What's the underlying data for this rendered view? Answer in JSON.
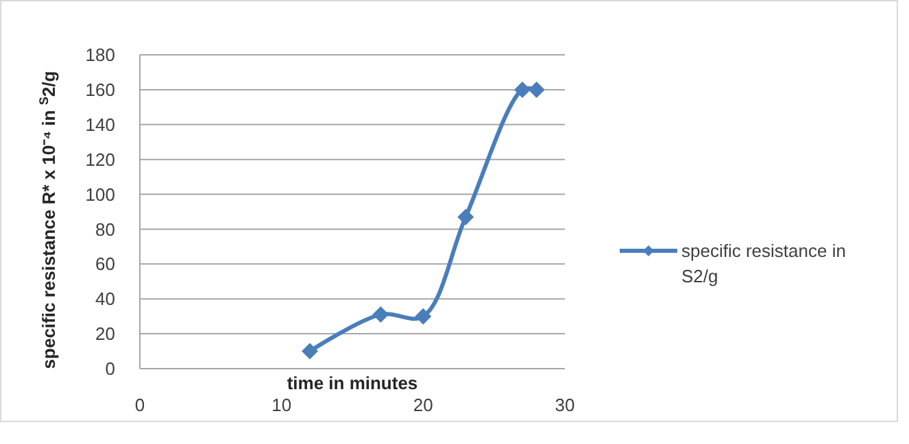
{
  "chart_data": {
    "type": "line",
    "xlabel": "time in minutes",
    "ylabel": "specific resistance R* x 10⁻⁴ in $^{S}$2/g",
    "x": [
      12,
      17,
      20,
      23,
      27,
      28
    ],
    "series": [
      {
        "name": "specific resistance in S2/g",
        "color": "#4a7ebb",
        "values": [
          10,
          31,
          30,
          87,
          160,
          160
        ]
      }
    ],
    "xlim": [
      0,
      30
    ],
    "xticks": [
      0,
      10,
      20,
      30
    ],
    "ylim": [
      0,
      180
    ],
    "yticks": [
      0,
      20,
      40,
      60,
      80,
      100,
      120,
      140,
      160,
      180
    ],
    "grid": "y",
    "legend": "right",
    "marker": "diamond",
    "line_style": "solid"
  }
}
